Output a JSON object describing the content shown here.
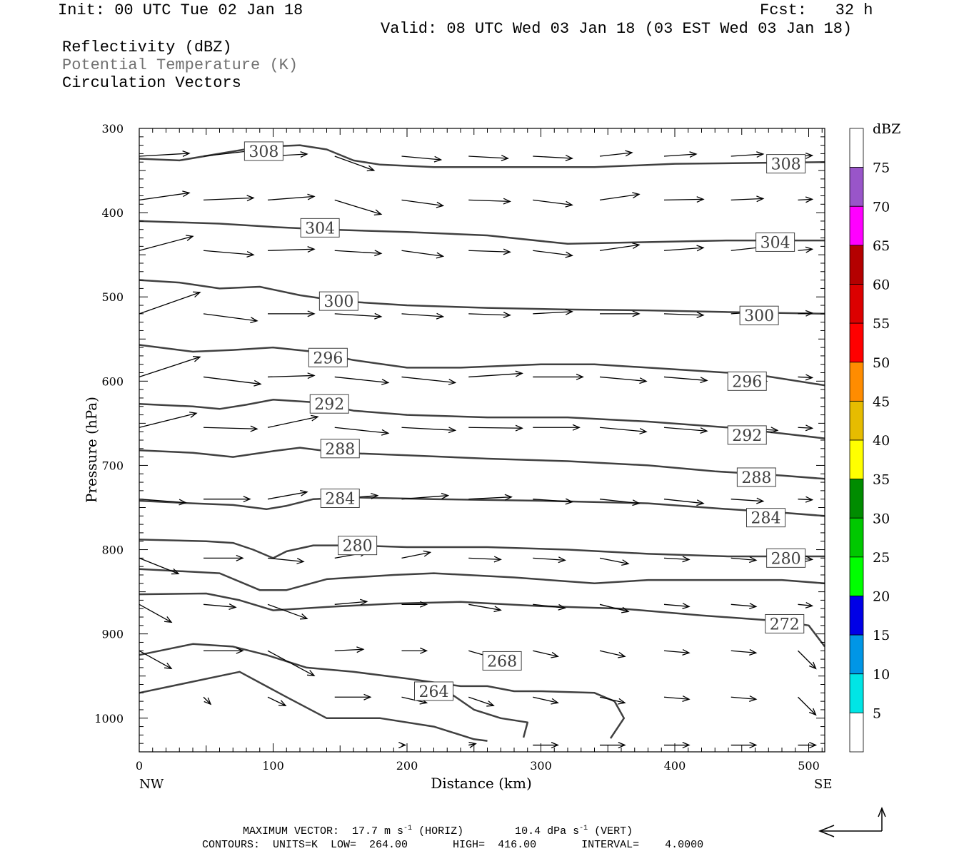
{
  "header": {
    "init": "Init: 00 UTC Tue 02 Jan 18",
    "fcst": "Fcst:   32 h",
    "valid": "Valid: 08 UTC Wed 03 Jan 18 (03 EST Wed 03 Jan 18)",
    "field1": "Reflectivity (dBZ)",
    "field2": "Potential Temperature (K)",
    "field3": "Circulation Vectors"
  },
  "footer": {
    "max_vector_prefix": "MAXIMUM VECTOR:  17.7 m s",
    "horiz_mid": " (HORIZ)        10.4 dPa s",
    "vert_end": " (VERT)",
    "exp": "-1",
    "contours": "CONTOURS:  UNITS=K  LOW=  264.00       HIGH=  416.00       INTERVAL=    4.0000"
  },
  "colorbar": {
    "title": "dBZ",
    "levels": [
      5,
      10,
      15,
      20,
      25,
      30,
      35,
      40,
      45,
      50,
      55,
      60,
      65,
      70,
      75
    ],
    "colors": [
      "#ffffff",
      "#00e5e5",
      "#0096e6",
      "#0000e6",
      "#00ff00",
      "#00c800",
      "#008c00",
      "#ffff00",
      "#e6bc00",
      "#ff8c00",
      "#ff0000",
      "#dc0000",
      "#b40000",
      "#ff00ff",
      "#9955c9",
      "#ffffff"
    ]
  },
  "chart_data": {
    "type": "contour",
    "title": "",
    "xlabel": "Distance (km)",
    "ylabel": "Pressure (hPa)",
    "xlim": [
      0,
      512
    ],
    "ylim": [
      1040,
      300
    ],
    "x_ticks": [
      0,
      100,
      200,
      300,
      400,
      500
    ],
    "y_ticks": [
      300,
      400,
      500,
      600,
      700,
      800,
      900,
      1000
    ],
    "x_end_labels": {
      "left": "NW",
      "right": "SE"
    },
    "grid": false,
    "contour_levels_labeled": [
      264,
      268,
      272,
      280,
      284,
      288,
      292,
      296,
      300,
      304,
      308
    ],
    "contours": [
      {
        "level": 308,
        "points": [
          [
            0,
            336
          ],
          [
            30,
            338
          ],
          [
            60,
            330
          ],
          [
            90,
            322
          ],
          [
            120,
            320
          ],
          [
            140,
            325
          ],
          [
            160,
            338
          ],
          [
            180,
            343
          ],
          [
            220,
            346
          ],
          [
            280,
            346
          ],
          [
            340,
            346
          ],
          [
            400,
            342
          ],
          [
            460,
            341
          ],
          [
            512,
            340
          ]
        ],
        "labels": [
          [
            93,
            327
          ],
          [
            483,
            342
          ]
        ]
      },
      {
        "level": 304,
        "points": [
          [
            0,
            410
          ],
          [
            60,
            413
          ],
          [
            100,
            417
          ],
          [
            140,
            420
          ],
          [
            200,
            423
          ],
          [
            260,
            427
          ],
          [
            320,
            437
          ],
          [
            380,
            435
          ],
          [
            440,
            433
          ],
          [
            512,
            433
          ]
        ],
        "labels": [
          [
            135,
            418
          ],
          [
            475,
            435
          ]
        ]
      },
      {
        "level": 300,
        "points": [
          [
            0,
            480
          ],
          [
            30,
            483
          ],
          [
            60,
            490
          ],
          [
            90,
            488
          ],
          [
            120,
            498
          ],
          [
            150,
            505
          ],
          [
            200,
            510
          ],
          [
            260,
            513
          ],
          [
            320,
            515
          ],
          [
            380,
            516
          ],
          [
            440,
            518
          ],
          [
            512,
            520
          ]
        ],
        "labels": [
          [
            149,
            505
          ],
          [
            463,
            522
          ]
        ]
      },
      {
        "level": 296,
        "points": [
          [
            0,
            557
          ],
          [
            40,
            565
          ],
          [
            70,
            563
          ],
          [
            100,
            560
          ],
          [
            130,
            565
          ],
          [
            160,
            575
          ],
          [
            200,
            584
          ],
          [
            240,
            584
          ],
          [
            300,
            580
          ],
          [
            340,
            580
          ],
          [
            400,
            586
          ],
          [
            460,
            592
          ],
          [
            512,
            605
          ]
        ],
        "labels": [
          [
            141,
            572
          ],
          [
            454,
            600
          ]
        ]
      },
      {
        "level": 292,
        "points": [
          [
            0,
            627
          ],
          [
            40,
            630
          ],
          [
            60,
            633
          ],
          [
            80,
            628
          ],
          [
            100,
            622
          ],
          [
            130,
            625
          ],
          [
            160,
            635
          ],
          [
            200,
            640
          ],
          [
            260,
            643
          ],
          [
            320,
            643
          ],
          [
            380,
            648
          ],
          [
            440,
            655
          ],
          [
            480,
            662
          ],
          [
            512,
            668
          ]
        ],
        "labels": [
          [
            142,
            627
          ],
          [
            454,
            664
          ]
        ]
      },
      {
        "level": 288,
        "points": [
          [
            0,
            682
          ],
          [
            40,
            685
          ],
          [
            70,
            690
          ],
          [
            100,
            683
          ],
          [
            120,
            679
          ],
          [
            150,
            685
          ],
          [
            200,
            688
          ],
          [
            260,
            692
          ],
          [
            320,
            695
          ],
          [
            380,
            700
          ],
          [
            430,
            707
          ],
          [
            480,
            712
          ],
          [
            512,
            716
          ]
        ],
        "labels": [
          [
            150,
            680
          ],
          [
            461,
            714
          ]
        ]
      },
      {
        "level": 284,
        "points": [
          [
            0,
            742
          ],
          [
            40,
            745
          ],
          [
            70,
            747
          ],
          [
            95,
            752
          ],
          [
            110,
            748
          ],
          [
            130,
            740
          ],
          [
            160,
            738
          ],
          [
            220,
            740
          ],
          [
            300,
            742
          ],
          [
            380,
            745
          ],
          [
            440,
            752
          ],
          [
            480,
            756
          ],
          [
            512,
            760
          ]
        ],
        "labels": [
          [
            150,
            739
          ],
          [
            468,
            762
          ]
        ]
      },
      {
        "level": 280,
        "points": [
          [
            0,
            788
          ],
          [
            50,
            790
          ],
          [
            70,
            792
          ],
          [
            85,
            800
          ],
          [
            100,
            810
          ],
          [
            110,
            802
          ],
          [
            130,
            795
          ],
          [
            160,
            795
          ],
          [
            200,
            797
          ],
          [
            260,
            797
          ],
          [
            320,
            800
          ],
          [
            380,
            805
          ],
          [
            440,
            808
          ],
          [
            512,
            808
          ]
        ],
        "labels": [
          [
            163,
            795
          ],
          [
            483,
            810
          ]
        ]
      },
      {
        "level": 276,
        "points": [
          [
            0,
            823
          ],
          [
            60,
            828
          ],
          [
            90,
            848
          ],
          [
            110,
            848
          ],
          [
            140,
            835
          ],
          [
            190,
            830
          ],
          [
            220,
            828
          ],
          [
            280,
            833
          ],
          [
            340,
            840
          ],
          [
            380,
            836
          ],
          [
            440,
            836
          ],
          [
            480,
            836
          ],
          [
            512,
            840
          ]
        ],
        "labels": []
      },
      {
        "level": 272,
        "points": [
          [
            0,
            853
          ],
          [
            50,
            852
          ],
          [
            75,
            860
          ],
          [
            100,
            872
          ],
          [
            140,
            868
          ],
          [
            190,
            864
          ],
          [
            240,
            862
          ],
          [
            300,
            867
          ],
          [
            360,
            870
          ],
          [
            420,
            878
          ],
          [
            480,
            885
          ],
          [
            500,
            890
          ],
          [
            512,
            915
          ]
        ],
        "labels": [
          [
            482,
            888
          ]
        ]
      },
      {
        "level": 268,
        "points": [
          [
            0,
            925
          ],
          [
            40,
            912
          ],
          [
            70,
            915
          ],
          [
            95,
            925
          ],
          [
            125,
            940
          ],
          [
            160,
            945
          ],
          [
            200,
            953
          ],
          [
            240,
            962
          ],
          [
            260,
            962
          ],
          [
            280,
            968
          ],
          [
            300,
            968
          ],
          [
            340,
            970
          ],
          [
            355,
            980
          ],
          [
            362,
            1000
          ],
          [
            352,
            1024
          ]
        ],
        "labels": [
          [
            271,
            932
          ]
        ]
      },
      {
        "level": 264,
        "points": [
          [
            0,
            970
          ],
          [
            30,
            960
          ],
          [
            60,
            950
          ],
          [
            75,
            945
          ],
          [
            110,
            975
          ],
          [
            140,
            1000
          ],
          [
            180,
            1000
          ],
          [
            220,
            1010
          ],
          [
            250,
            1025
          ],
          [
            260,
            1027
          ]
        ],
        "labels": [
          [
            220,
            968
          ]
        ]
      },
      {
        "level": 264,
        "points": [
          [
            230,
            968
          ],
          [
            250,
            990
          ],
          [
            270,
            1000
          ],
          [
            290,
            1005
          ],
          [
            287,
            1023
          ]
        ],
        "labels": []
      }
    ],
    "vectors": {
      "rows": [
        {
          "p": 333,
          "vectors": [
            [
              0,
              0.91,
              2.11,
              -0.34
            ],
            [
              50,
              0.91,
              3.11,
              -1.36
            ],
            [
              1,
              2,
              3,
              -2.2
            ]
          ]
        }
      ]
    }
  }
}
